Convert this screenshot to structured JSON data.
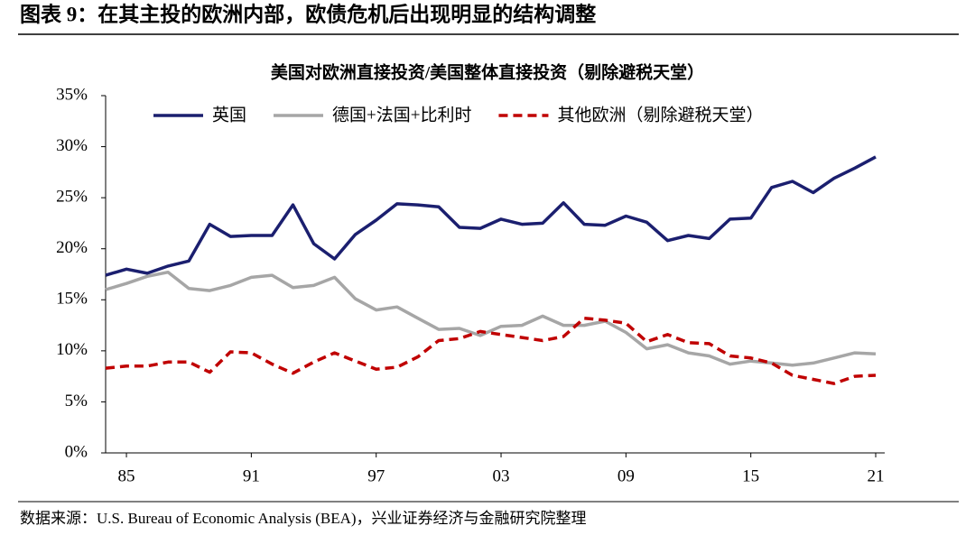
{
  "figure_title": "图表 9：在其主投的欧洲内部，欧债危机后出现明显的结构调整",
  "source": "数据来源：U.S. Bureau of Economic Analysis (BEA)，兴业证券经济与金融研究院整理",
  "chart_data": {
    "type": "line",
    "title": "美国对欧洲直接投资/美国整体直接投资（剔除避税天堂）",
    "categories": [
      null,
      "85",
      null,
      null,
      null,
      null,
      null,
      "91",
      null,
      null,
      null,
      null,
      null,
      "97",
      null,
      null,
      null,
      null,
      null,
      "03",
      null,
      null,
      null,
      null,
      null,
      "09",
      null,
      null,
      null,
      null,
      null,
      "15",
      null,
      null,
      null,
      null,
      null,
      "21"
    ],
    "series": [
      {
        "name": "英国",
        "color": "#1b1f6f",
        "dash": false,
        "values": [
          17.4,
          18.0,
          17.6,
          18.3,
          18.8,
          22.4,
          21.2,
          21.3,
          21.3,
          24.3,
          20.5,
          19.0,
          21.4,
          22.8,
          24.4,
          24.3,
          24.1,
          22.1,
          22.0,
          22.9,
          22.4,
          22.5,
          24.5,
          22.4,
          22.3,
          23.2,
          22.6,
          20.8,
          21.3,
          21.0,
          22.9,
          23.0,
          26.0,
          26.6,
          25.5,
          26.9,
          27.9,
          29.0
        ]
      },
      {
        "name": "德国+法国+比利时",
        "color": "#a6a6a6",
        "dash": false,
        "values": [
          16.0,
          16.6,
          17.3,
          17.7,
          16.1,
          15.9,
          16.4,
          17.2,
          17.4,
          16.2,
          16.4,
          17.2,
          15.1,
          14.0,
          14.3,
          13.2,
          12.1,
          12.2,
          11.5,
          12.4,
          12.5,
          13.4,
          12.5,
          12.5,
          12.9,
          11.8,
          10.2,
          10.6,
          9.8,
          9.5,
          8.7,
          9.0,
          8.8,
          8.6,
          8.8,
          9.3,
          9.8,
          9.7
        ]
      },
      {
        "name": "其他欧洲（剔除避税天堂）",
        "color": "#c00000",
        "dash": true,
        "values": [
          8.3,
          8.5,
          8.5,
          8.9,
          8.9,
          7.9,
          9.9,
          9.8,
          8.7,
          7.8,
          8.9,
          9.8,
          9.0,
          8.2,
          8.4,
          9.4,
          11.0,
          11.2,
          11.9,
          11.6,
          11.3,
          11.0,
          11.4,
          13.2,
          13.0,
          12.7,
          10.9,
          11.6,
          10.8,
          10.7,
          9.5,
          9.3,
          8.8,
          7.6,
          7.2,
          6.8,
          7.5,
          7.6
        ]
      }
    ],
    "ylim": [
      0,
      35
    ],
    "yticks": [
      {
        "value": 0,
        "label": "0%"
      },
      {
        "value": 5,
        "label": "5%"
      },
      {
        "value": 10,
        "label": "10%"
      },
      {
        "value": 15,
        "label": "15%"
      },
      {
        "value": 20,
        "label": "20%"
      },
      {
        "value": 25,
        "label": "25%"
      },
      {
        "value": 30,
        "label": "30%"
      },
      {
        "value": 35,
        "label": "35%"
      }
    ],
    "grid": false
  }
}
